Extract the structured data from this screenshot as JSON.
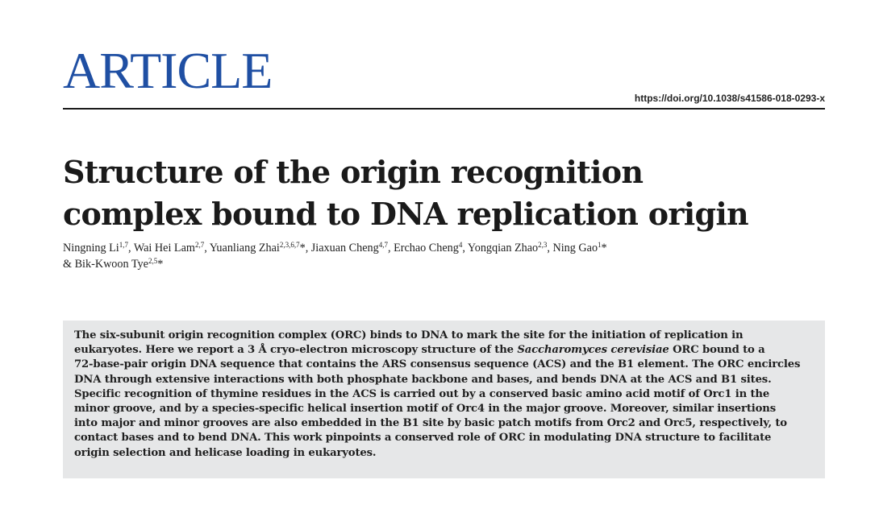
{
  "header": {
    "section_label": "ARTICLE",
    "doi": "https://doi.org/10.1038/s41586-018-0293-x"
  },
  "title": {
    "line1": "Structure of the origin recognition",
    "line2": "complex bound to DNA replication origin"
  },
  "authors": [
    {
      "name": "Ningning Li",
      "aff": "1,7",
      "sep": ", "
    },
    {
      "name": "Wai Hei Lam",
      "aff": "2,7",
      "sep": ", "
    },
    {
      "name": "Yuanliang Zhai",
      "aff": "2,3,6,7",
      "star": "*",
      "sep": ", "
    },
    {
      "name": "Jiaxuan Cheng",
      "aff": "4,7",
      "sep": ", "
    },
    {
      "name": "Erchao Cheng",
      "aff": "4",
      "sep": ", "
    },
    {
      "name": "Yongqian Zhao",
      "aff": "2,3",
      "sep": ", "
    },
    {
      "name": "Ning Gao",
      "aff": "1",
      "star": "*",
      "sep": ""
    },
    {
      "prefix": "& ",
      "name": "Bik-Kwoon Tye",
      "aff": "2,5",
      "star": "*",
      "sep": ""
    }
  ],
  "abstract": {
    "l1": "The six-subunit origin recognition complex (ORC) binds to DNA to mark the site for the initiation of replication in",
    "l2_a": "eukaryotes. Here we report a 3 Å cryo-electron microscopy structure of the ",
    "l2_i": "Saccharomyces cerevisiae",
    "l2_b": " ORC bound to a",
    "l3": "72-base-pair origin DNA sequence that contains the ARS consensus sequence (ACS) and the B1 element. The ORC encircles",
    "l4": "DNA through extensive interactions with both phosphate backbone and bases, and bends DNA at the ACS and B1 sites.",
    "l5": "Specific recognition of thymine residues in the ACS is carried out by a conserved basic amino acid motif of Orc1 in the",
    "l6": "minor groove, and by a species-specific helical insertion motif of Orc4 in the major groove. Moreover, similar insertions",
    "l7": "into major and minor grooves are also embedded in the B1 site by basic patch motifs from Orc2 and Orc5, respectively, to",
    "l8": "contact bases and to bend DNA. This work pinpoints a conserved role of ORC in modulating DNA structure to facilitate",
    "l9": "origin selection and helicase loading in eukaryotes."
  },
  "colors": {
    "section_label": "#1f4fa3",
    "abstract_background": "#e6e7e8"
  }
}
